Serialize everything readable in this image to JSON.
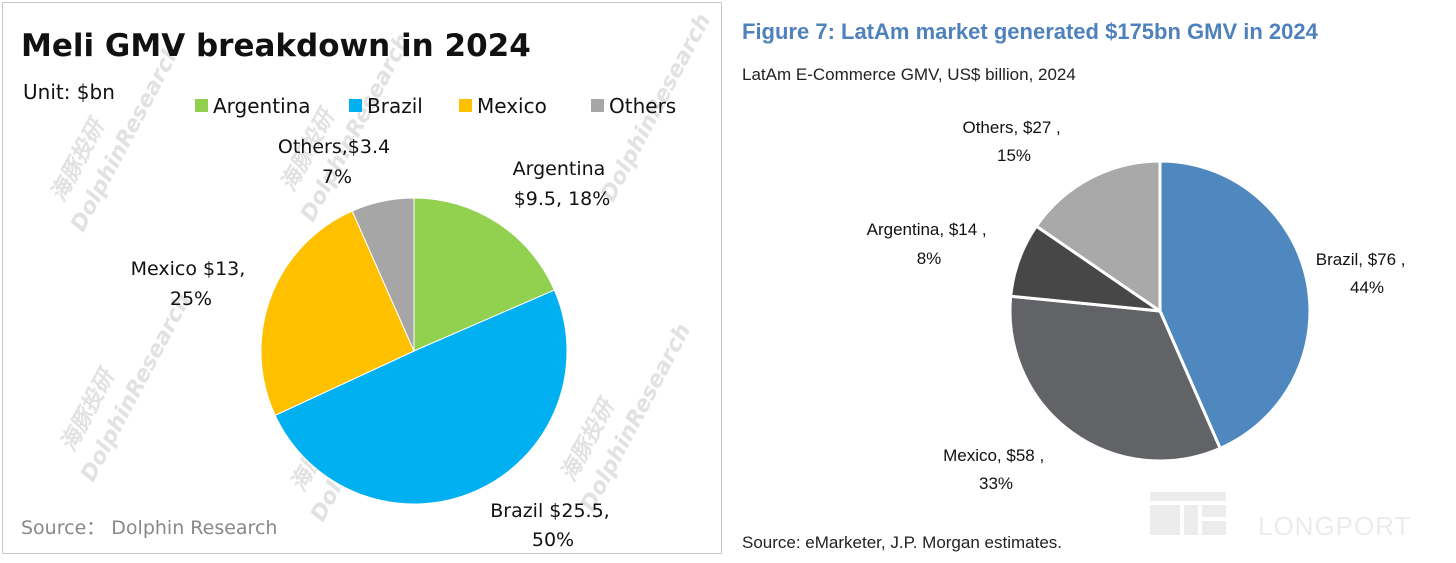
{
  "chart_data": [
    {
      "type": "pie",
      "title": "Meli GMV breakdown in 2024",
      "unit_label": "Unit: $bn",
      "legend": [
        "Argentina",
        "Brazil",
        "Mexico",
        "Others"
      ],
      "legend_position": "top-right",
      "slices": [
        {
          "name": "Argentina",
          "value": 9.5,
          "percent": 18,
          "color": "#92d050",
          "label_lines": [
            "Argentina",
            "$9.5, 18%"
          ]
        },
        {
          "name": "Brazil",
          "value": 25.5,
          "percent": 50,
          "color": "#00b0f0",
          "label_lines": [
            "Brazil $25.5,",
            "50%"
          ]
        },
        {
          "name": "Mexico",
          "value": 13,
          "percent": 25,
          "color": "#ffc000",
          "label_lines": [
            "Mexico $13,",
            "25%"
          ]
        },
        {
          "name": "Others",
          "value": 3.4,
          "percent": 7,
          "color": "#a6a6a6",
          "label_lines": [
            "Others,$3.4",
            "7%"
          ]
        }
      ],
      "source": "Source： Dolphin Research",
      "watermark": [
        "海豚投研",
        "DolphinResearch"
      ]
    },
    {
      "type": "pie",
      "title": "Figure 7: LatAm market generated $175bn GMV in 2024",
      "subtitle": "LatAm E-Commerce GMV, US$ billion, 2024",
      "slices": [
        {
          "name": "Brazil",
          "value": 76,
          "percent": 44,
          "color": "#4f88bf",
          "label_lines": [
            "Brazil, $76 ,",
            "44%"
          ]
        },
        {
          "name": "Mexico",
          "value": 58,
          "percent": 33,
          "color": "#626366",
          "label_lines": [
            "Mexico, $58 ,",
            "33%"
          ]
        },
        {
          "name": "Argentina",
          "value": 14,
          "percent": 8,
          "color": "#474747",
          "label_lines": [
            "Argentina, $14 ,",
            "8%"
          ]
        },
        {
          "name": "Others",
          "value": 27,
          "percent": 15,
          "color": "#a9a9a9",
          "label_lines": [
            "Others, $27 ,",
            "15%"
          ]
        }
      ],
      "source": "Source: eMarketer, J.P. Morgan estimates.",
      "watermark": "LONGPORT"
    }
  ]
}
